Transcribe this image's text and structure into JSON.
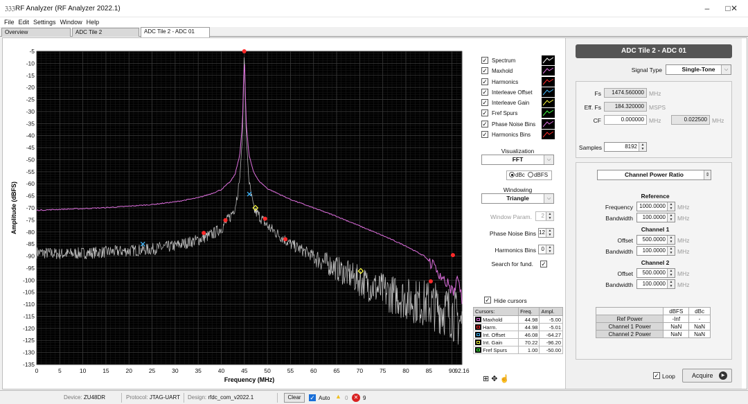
{
  "window": {
    "title": "RF Analyzer (RF Analyzer 2022.1)",
    "logo_text": "ℨℨℨ",
    "minimize": "–",
    "maximize": "□",
    "close": "✕"
  },
  "menu": [
    "File",
    "Edit",
    "Settings",
    "Window",
    "Help"
  ],
  "tabs": [
    "Overview",
    "ADC Tile 2",
    "ADC Tile 2 - ADC 01"
  ],
  "chart_data": {
    "type": "line",
    "xlabel": "Frequency (MHz)",
    "ylabel": "Amplitude (dBFS)",
    "xlim": [
      0,
      92.16
    ],
    "ylim": [
      -135,
      -5
    ],
    "x_ticks": [
      0,
      5,
      10,
      15,
      20,
      25,
      30,
      35,
      40,
      45,
      50,
      55,
      60,
      65,
      70,
      75,
      80,
      85,
      90,
      92.16
    ],
    "x_tick_labels": [
      "0",
      "5",
      "10",
      "15",
      "20",
      "25",
      "30",
      "35",
      "40",
      "45",
      "50",
      "55",
      "60",
      "65",
      "70",
      "75",
      "80",
      "85",
      "90",
      "92.16"
    ],
    "y_ticks": [
      -5,
      -10,
      -15,
      -20,
      -25,
      -30,
      -35,
      -40,
      -45,
      -50,
      -55,
      -60,
      -65,
      -70,
      -75,
      -80,
      -85,
      -90,
      -95,
      -100,
      -105,
      -110,
      -115,
      -120,
      -125,
      -130,
      -135
    ],
    "grid": true,
    "background": "#000000",
    "series": [
      {
        "name": "Maxhold",
        "color": "#e070e0",
        "points": [
          [
            0,
            -71
          ],
          [
            5,
            -70.6
          ],
          [
            10,
            -70.3
          ],
          [
            15,
            -69.9
          ],
          [
            20,
            -69.3
          ],
          [
            25,
            -68.6
          ],
          [
            30,
            -67.5
          ],
          [
            35,
            -65.8
          ],
          [
            38,
            -64
          ],
          [
            40,
            -62.4
          ],
          [
            42,
            -59
          ],
          [
            43,
            -56
          ],
          [
            44,
            -48
          ],
          [
            44.6,
            -35
          ],
          [
            44.98,
            -5
          ],
          [
            45.4,
            -35
          ],
          [
            46,
            -48
          ],
          [
            47,
            -55
          ],
          [
            48,
            -58.5
          ],
          [
            50,
            -62
          ],
          [
            55,
            -66.5
          ],
          [
            60,
            -70
          ],
          [
            65,
            -73.5
          ],
          [
            70,
            -77.5
          ],
          [
            75,
            -81.5
          ],
          [
            80,
            -85.8
          ],
          [
            84,
            -90
          ],
          [
            86,
            -94
          ],
          [
            88,
            -99
          ],
          [
            89.5,
            -103
          ],
          [
            90.5,
            -105
          ],
          [
            91.5,
            -98
          ],
          [
            92.16,
            -110
          ]
        ]
      },
      {
        "name": "Spectrum",
        "color": "#c8c8c8",
        "points": [
          [
            0,
            -88
          ],
          [
            5,
            -88.6
          ],
          [
            10,
            -88.3
          ],
          [
            15,
            -87.8
          ],
          [
            20,
            -87.3
          ],
          [
            25,
            -86.6
          ],
          [
            30,
            -85.2
          ],
          [
            35,
            -82.8
          ],
          [
            38,
            -80.5
          ],
          [
            40,
            -78
          ],
          [
            42,
            -73
          ],
          [
            43,
            -69
          ],
          [
            44,
            -58
          ],
          [
            44.6,
            -40
          ],
          [
            44.98,
            -5
          ],
          [
            45.4,
            -40
          ],
          [
            46,
            -59
          ],
          [
            47,
            -70
          ],
          [
            50,
            -77
          ],
          [
            55,
            -84.5
          ],
          [
            60,
            -89.5
          ],
          [
            65,
            -94
          ],
          [
            70,
            -99
          ],
          [
            75,
            -103
          ],
          [
            80,
            -106
          ],
          [
            85,
            -108
          ],
          [
            90,
            -111
          ],
          [
            92.16,
            -116
          ]
        ]
      }
    ],
    "markers": {
      "harmonics": {
        "color": "#ff2a2a",
        "points": [
          [
            44.98,
            -5
          ],
          [
            36.2,
            -80.4
          ],
          [
            40.9,
            -75.1
          ],
          [
            49.5,
            -74.5
          ],
          [
            53.9,
            -83
          ],
          [
            85.4,
            -100.5
          ],
          [
            90.2,
            -89.6
          ]
        ]
      },
      "interleave_offset": {
        "color": "#40b8ff",
        "points": [
          [
            46.08,
            -64.27
          ],
          [
            23,
            -85
          ]
        ]
      },
      "interleave_gain": {
        "color": "#ffff40",
        "points": [
          [
            70.22,
            -96.2
          ],
          [
            47.4,
            -70
          ]
        ]
      },
      "fref_spurs": {
        "color": "#40ff40",
        "points": [
          [
            1,
            -50
          ]
        ]
      }
    }
  },
  "legend": [
    {
      "label": "Spectrum",
      "checked": true
    },
    {
      "label": "Maxhold",
      "checked": true
    },
    {
      "label": "Harmonics",
      "checked": true
    },
    {
      "label": "Interleave Offset",
      "checked": true
    },
    {
      "label": "Interleave Gain",
      "checked": true
    },
    {
      "label": "Fref Spurs",
      "checked": true
    },
    {
      "label": "Phase Noise Bins",
      "checked": true
    },
    {
      "label": "Harmonics Bins",
      "checked": true
    }
  ],
  "controls": {
    "visualization_label": "Visualization",
    "visualization_value": "FFT",
    "dbc_label": "dBc",
    "dbfs_label": "dBFS",
    "windowing_label": "Windowing",
    "windowing_value": "Triangle",
    "window_param_label": "Window Param.",
    "window_param_value": "2",
    "phase_noise_bins_label": "Phase Noise Bins",
    "phase_noise_bins_value": "12",
    "harmonics_bins_label": "Harmonics Bins",
    "harmonics_bins_value": "0",
    "search_fund_label": "Search for fund.",
    "hide_cursors_label": "Hide cursors",
    "check_mark": "✓"
  },
  "cursors": {
    "headers": [
      "Cursors:",
      "Freq.",
      "Ampl."
    ],
    "rows": [
      {
        "name": "Maxhold",
        "freq": "44.98",
        "ampl": "-5.00",
        "color": "#e070e0"
      },
      {
        "name": "Harm.",
        "freq": "44.98",
        "ampl": "-5.01",
        "color": "#ff2a2a"
      },
      {
        "name": "Int. Offset",
        "freq": "46.08",
        "ampl": "-64.27",
        "color": "#40b8ff"
      },
      {
        "name": "Int. Gain",
        "freq": "70.22",
        "ampl": "-96.20",
        "color": "#ffff40"
      },
      {
        "name": "Fref Spurs",
        "freq": "1.00",
        "ampl": "-50.00",
        "color": "#40ff40"
      }
    ]
  },
  "tools": {
    "zoom": "⊞",
    "pan": "✥",
    "cursor": "☝"
  },
  "panel": {
    "title": "ADC Tile 2 - ADC 01",
    "signal_type_label": "Signal Type",
    "signal_type_value": "Single-Tone",
    "fs_label": "Fs",
    "fs_value": "1474.560000",
    "fs_unit": "MHz",
    "efffs_label": "Eff. Fs",
    "efffs_value": "184.320000",
    "efffs_unit": "MSPS",
    "cf_label": "CF",
    "cf_value": "0.000000",
    "cf_unit": "MHz",
    "cf2_value": "0.022500",
    "cf2_unit": "MHz",
    "samples_label": "Samples",
    "samples_value": "8192",
    "measurement_value": "Channel Power Ratio",
    "reference_title": "Reference",
    "ref_freq_label": "Frequency",
    "ref_freq_value": "1000.0000",
    "ref_bw_label": "Bandwidth",
    "ref_bw_value": "100.0000",
    "ch1_title": "Channel 1",
    "ch1_offset_label": "Offset",
    "ch1_offset_value": "500.0000",
    "ch1_bw_label": "Bandwidth",
    "ch1_bw_value": "100.0000",
    "ch2_title": "Channel 2",
    "ch2_offset_label": "Offset",
    "ch2_offset_value": "500.0000",
    "ch2_bw_label": "Bandwidth",
    "ch2_bw_value": "100.0000",
    "unit_mhz": "MHz",
    "power_table": {
      "headers": [
        "",
        "dBFS",
        "dBc"
      ],
      "rows": [
        [
          "Ref Power",
          "-Inf",
          "-"
        ],
        [
          "Channel 1 Power",
          "NaN",
          "NaN"
        ],
        [
          "Channel 2 Power",
          "NaN",
          "NaN"
        ]
      ]
    },
    "loop_label": "Loop",
    "acquire_label": "Acquire",
    "play_icon": "▶"
  },
  "status": {
    "device_label": "Device:",
    "device_value": "ZU48DR",
    "protocol_label": "Protocol:",
    "protocol_value": "JTAG-UART",
    "design_label": "Design:",
    "design_value": "rfdc_com_v2022.1",
    "clear_label": "Clear",
    "auto_label": "Auto",
    "warn_count": "0",
    "error_count": "9",
    "warn_color": "#f0c020",
    "error_color": "#d82020"
  }
}
